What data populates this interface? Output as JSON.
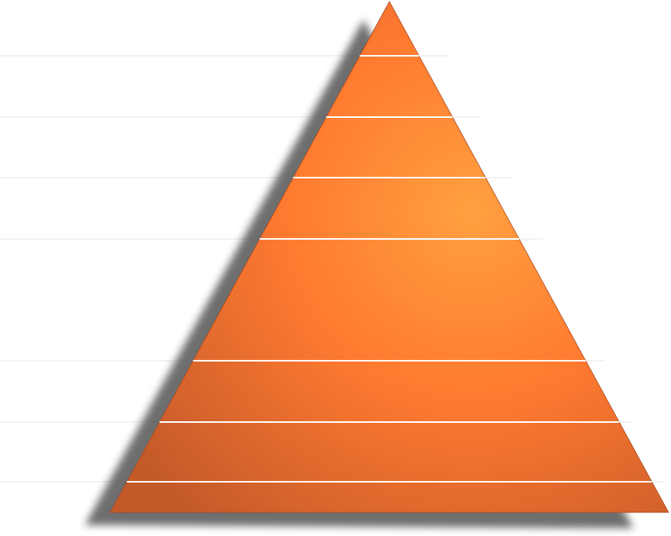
{
  "diagram": {
    "type": "pyramid",
    "tier_count": 8,
    "tiers": [
      {
        "label": ""
      },
      {
        "label": ""
      },
      {
        "label": ""
      },
      {
        "label": ""
      },
      {
        "label": ""
      },
      {
        "label": ""
      },
      {
        "label": ""
      },
      {
        "label": ""
      }
    ]
  },
  "colors": {
    "gradient_light": "#ffa040",
    "gradient_mid": "#ff7a30",
    "gradient_dark": "#c45a2a",
    "shadow": "#555555",
    "divider": "#ffffff",
    "guide_line": "#e6e6e6",
    "background": "#ffffff"
  }
}
